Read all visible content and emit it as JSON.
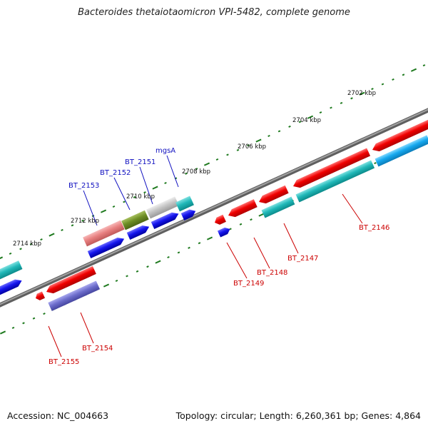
{
  "title": "Bacteroides thetaiotaomicron VPI-5482, complete genome",
  "footer": {
    "accession": "Accession: NC_004663",
    "summary": "Topology: circular; Length: 6,260,361 bp; Genes: 4,864"
  },
  "ticks": [
    {
      "label": "2702 kbp"
    },
    {
      "label": "2704 kbp"
    },
    {
      "label": "2706 kbp"
    },
    {
      "label": "2708 kbp"
    },
    {
      "label": "2710 kbp"
    },
    {
      "label": "2712 kbp"
    },
    {
      "label": "2714 kbp"
    }
  ],
  "genes_upper": [
    {
      "label": "mgsA"
    },
    {
      "label": "BT_2151"
    },
    {
      "label": "BT_2152"
    },
    {
      "label": "BT_2153"
    }
  ],
  "genes_lower": [
    {
      "label": "BT_2146"
    },
    {
      "label": "BT_2147"
    },
    {
      "label": "BT_2148"
    },
    {
      "label": "BT_2149"
    },
    {
      "label": "BT_2154"
    },
    {
      "label": "BT_2155"
    }
  ],
  "colors": {
    "backbone": "#808080",
    "tick": "#1f7a1f",
    "forward_label": "#1010c0",
    "reverse_label": "#cc0000",
    "cds_red": "#e80000",
    "cds_blue": "#1a1ae6",
    "cds_cyan": "#22b8b8",
    "cds_skyblue": "#19b0f0",
    "cds_pink": "#e98484",
    "cds_olive": "#6f8f25",
    "cds_grey": "#c0c0c0",
    "cds_slate": "#6d6dc8"
  }
}
